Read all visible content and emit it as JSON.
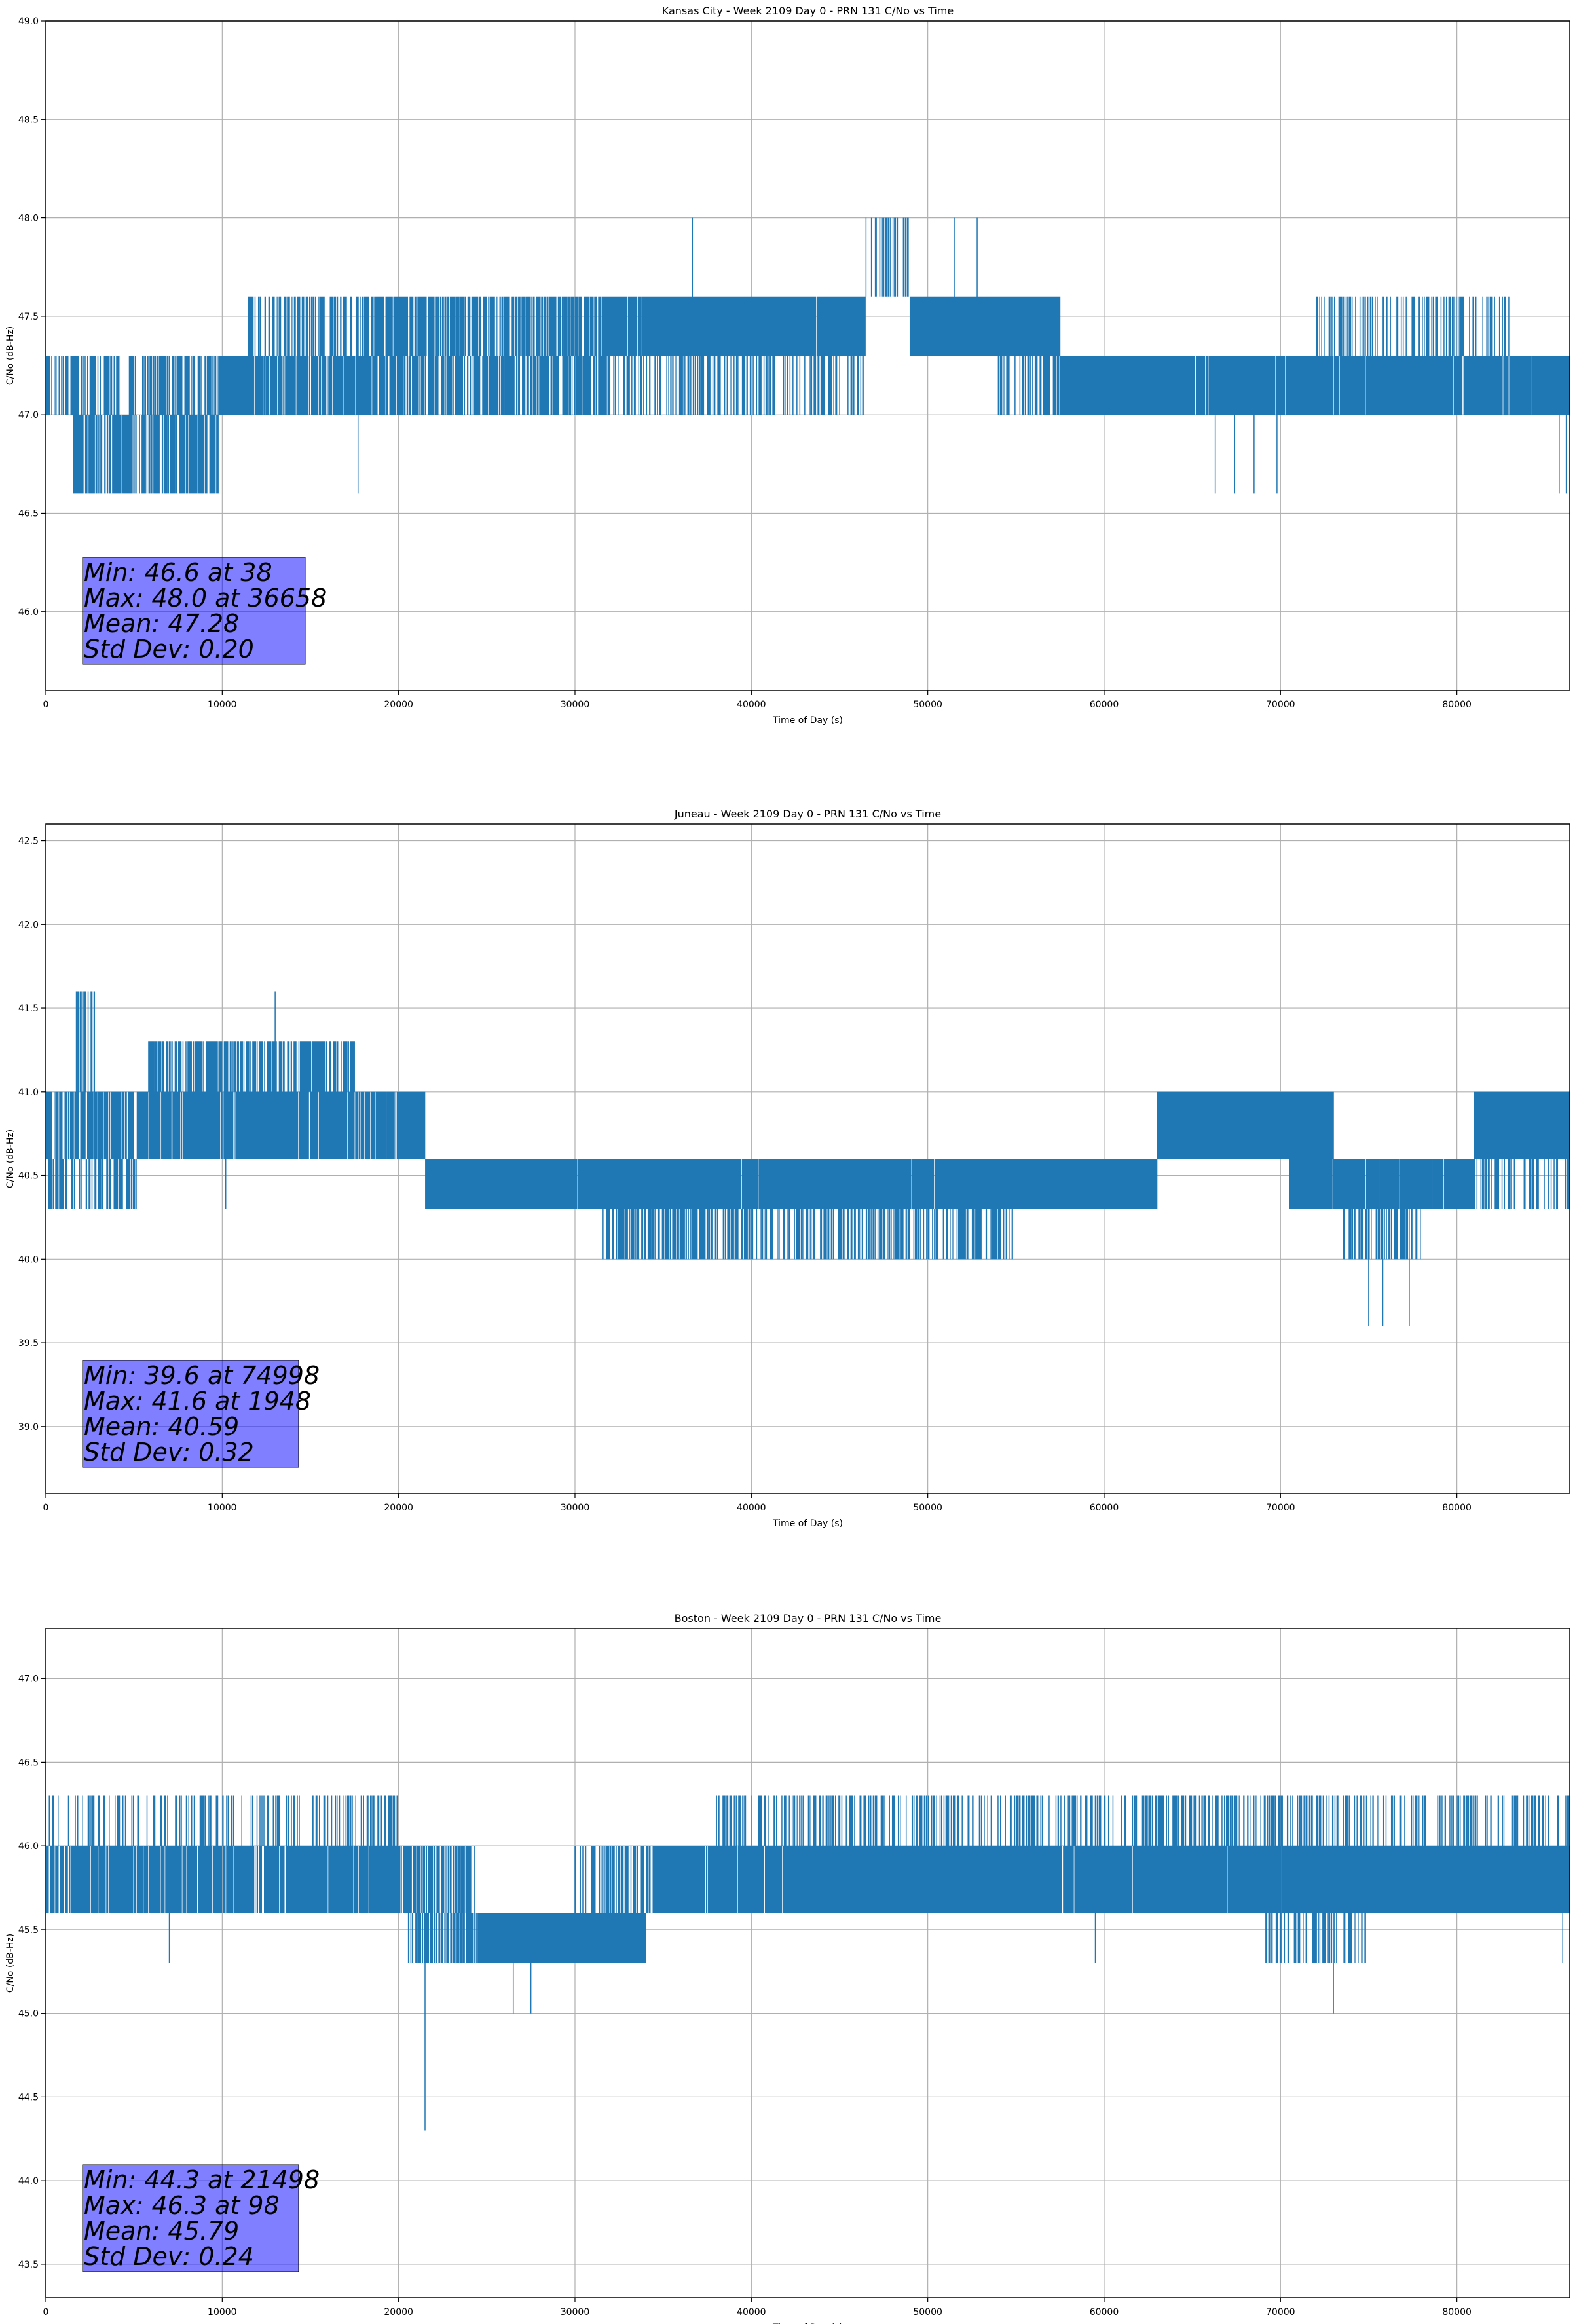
{
  "chart_data": [
    {
      "type": "line",
      "title": "Kansas City - Week 2109 Day 0 - PRN 131 C/No vs Time",
      "xlabel": "Time of Day (s)",
      "ylabel": "C/No (dB-Hz)",
      "xlim": [
        0,
        86400
      ],
      "ylim": [
        45.6,
        49.0
      ],
      "xticks": [
        "0",
        "10000",
        "20000",
        "30000",
        "40000",
        "50000",
        "60000",
        "70000",
        "80000"
      ],
      "yticks": [
        "46.0",
        "46.5",
        "47.0",
        "47.5",
        "48.0",
        "48.5",
        "49.0"
      ],
      "grid": true,
      "color": "#1f77b4",
      "series": [
        {
          "segments": [
            {
              "x0": 0,
              "x1": 9800,
              "lo": 47.0,
              "hi": 47.3,
              "density": 0.35
            },
            {
              "x0": 1500,
              "x1": 9800,
              "lo": 46.6,
              "hi": 47.0,
              "density": 0.55
            },
            {
              "x0": 9800,
              "x1": 11500,
              "lo": 47.0,
              "hi": 47.3,
              "density": 1.0
            },
            {
              "x0": 11500,
              "x1": 18000,
              "lo": 47.0,
              "hi": 47.3,
              "density": 0.7
            },
            {
              "x0": 11500,
              "x1": 18000,
              "lo": 47.3,
              "hi": 47.6,
              "density": 0.3
            },
            {
              "x0": 18000,
              "x1": 32000,
              "lo": 47.3,
              "hi": 47.6,
              "density": 0.55
            },
            {
              "x0": 18000,
              "x1": 32000,
              "lo": 47.0,
              "hi": 47.3,
              "density": 0.55
            },
            {
              "x0": 32000,
              "x1": 46500,
              "lo": 47.3,
              "hi": 47.6,
              "density": 0.9
            },
            {
              "x0": 32000,
              "x1": 46500,
              "lo": 47.0,
              "hi": 47.3,
              "density": 0.25
            },
            {
              "x0": 46500,
              "x1": 49000,
              "lo": 47.6,
              "hi": 48.0,
              "density": 0.3
            },
            {
              "x0": 49000,
              "x1": 57500,
              "lo": 47.3,
              "hi": 47.6,
              "density": 1.0
            },
            {
              "x0": 54000,
              "x1": 57500,
              "lo": 47.0,
              "hi": 47.3,
              "density": 0.4
            },
            {
              "x0": 57500,
              "x1": 65000,
              "lo": 47.0,
              "hi": 47.3,
              "density": 0.95
            },
            {
              "x0": 65000,
              "x1": 86400,
              "lo": 47.0,
              "hi": 47.3,
              "density": 0.85
            },
            {
              "x0": 72000,
              "x1": 83000,
              "lo": 47.3,
              "hi": 47.6,
              "density": 0.25
            }
          ],
          "spikes": [
            [
              36658,
              47.3,
              48.0
            ],
            [
              51500,
              47.3,
              48.0
            ],
            [
              52800,
              47.3,
              48.0
            ],
            [
              17700,
              47.0,
              46.6
            ],
            [
              66300,
              47.0,
              46.6
            ],
            [
              67400,
              47.0,
              46.6
            ],
            [
              68500,
              47.0,
              46.6
            ],
            [
              69800,
              47.0,
              46.6
            ],
            [
              85800,
              47.0,
              46.6
            ],
            [
              86200,
              47.0,
              46.6
            ]
          ]
        }
      ],
      "annotation": [
        "Min: 46.6 at 38",
        "Max: 48.0 at 36658",
        "Mean: 47.28",
        "Std Dev: 0.20"
      ]
    },
    {
      "type": "line",
      "title": "Juneau - Week 2109 Day 0 - PRN 131 C/No vs Time",
      "xlabel": "Time of Day (s)",
      "ylabel": "C/No (dB-Hz)",
      "xlim": [
        0,
        86400
      ],
      "ylim": [
        38.6,
        42.6
      ],
      "xticks": [
        "0",
        "10000",
        "20000",
        "30000",
        "40000",
        "50000",
        "60000",
        "70000",
        "80000"
      ],
      "yticks": [
        "39.0",
        "39.5",
        "40.0",
        "40.5",
        "41.0",
        "41.5",
        "42.0",
        "42.5"
      ],
      "grid": true,
      "color": "#1f77b4",
      "series": [
        {
          "segments": [
            {
              "x0": 0,
              "x1": 5200,
              "lo": 40.6,
              "hi": 41.0,
              "density": 0.55
            },
            {
              "x0": 0,
              "x1": 5200,
              "lo": 40.3,
              "hi": 40.6,
              "density": 0.35
            },
            {
              "x0": 1700,
              "x1": 2800,
              "lo": 41.0,
              "hi": 41.6,
              "density": 0.45
            },
            {
              "x0": 5200,
              "x1": 18000,
              "lo": 40.6,
              "hi": 41.0,
              "density": 0.75
            },
            {
              "x0": 5800,
              "x1": 17500,
              "lo": 41.0,
              "hi": 41.3,
              "density": 0.5
            },
            {
              "x0": 18000,
              "x1": 21500,
              "lo": 40.6,
              "hi": 41.0,
              "density": 0.8
            },
            {
              "x0": 21500,
              "x1": 63000,
              "lo": 40.3,
              "hi": 40.6,
              "density": 0.92
            },
            {
              "x0": 31500,
              "x1": 55000,
              "lo": 40.0,
              "hi": 40.3,
              "density": 0.35
            },
            {
              "x0": 63000,
              "x1": 73000,
              "lo": 40.6,
              "hi": 41.0,
              "density": 0.95
            },
            {
              "x0": 70500,
              "x1": 81000,
              "lo": 40.3,
              "hi": 40.6,
              "density": 0.85
            },
            {
              "x0": 73500,
              "x1": 78000,
              "lo": 40.0,
              "hi": 40.3,
              "density": 0.3
            },
            {
              "x0": 81000,
              "x1": 86400,
              "lo": 40.6,
              "hi": 41.0,
              "density": 0.95
            },
            {
              "x0": 81000,
              "x1": 86400,
              "lo": 40.3,
              "hi": 40.6,
              "density": 0.25
            }
          ],
          "spikes": [
            [
              1948,
              41.0,
              41.6
            ],
            [
              13000,
              41.0,
              41.6
            ],
            [
              74998,
              40.3,
              39.6
            ],
            [
              75800,
              40.3,
              39.6
            ],
            [
              77300,
              40.3,
              39.6
            ],
            [
              10200,
              40.6,
              40.3
            ]
          ]
        }
      ],
      "annotation": [
        "Min: 39.6 at 74998",
        "Max: 41.6 at 1948",
        "Mean: 40.59",
        "Std Dev: 0.32"
      ]
    },
    {
      "type": "line",
      "title": "Boston - Week 2109 Day 0 - PRN 131 C/No vs Time",
      "xlabel": "Time of Day (s)",
      "ylabel": "C/No (dB-Hz)",
      "xlim": [
        0,
        86400
      ],
      "ylim": [
        43.3,
        47.3
      ],
      "xticks": [
        "0",
        "10000",
        "20000",
        "30000",
        "40000",
        "50000",
        "60000",
        "70000",
        "80000"
      ],
      "yticks": [
        "43.5",
        "44.0",
        "44.5",
        "45.0",
        "45.5",
        "46.0",
        "46.5",
        "47.0"
      ],
      "grid": true,
      "color": "#1f77b4",
      "series": [
        {
          "segments": [
            {
              "x0": 0,
              "x1": 20500,
              "lo": 45.6,
              "hi": 46.0,
              "density": 0.75
            },
            {
              "x0": 0,
              "x1": 20000,
              "lo": 46.0,
              "hi": 46.3,
              "density": 0.2
            },
            {
              "x0": 20500,
              "x1": 24500,
              "lo": 45.6,
              "hi": 46.0,
              "density": 0.5
            },
            {
              "x0": 20500,
              "x1": 24500,
              "lo": 45.3,
              "hi": 45.6,
              "density": 0.5
            },
            {
              "x0": 24500,
              "x1": 34000,
              "lo": 45.3,
              "hi": 45.6,
              "density": 0.95
            },
            {
              "x0": 30000,
              "x1": 34500,
              "lo": 45.6,
              "hi": 46.0,
              "density": 0.35
            },
            {
              "x0": 34500,
              "x1": 86400,
              "lo": 45.6,
              "hi": 46.0,
              "density": 0.9
            },
            {
              "x0": 38000,
              "x1": 86400,
              "lo": 46.0,
              "hi": 46.3,
              "density": 0.25
            },
            {
              "x0": 69000,
              "x1": 75000,
              "lo": 45.3,
              "hi": 45.6,
              "density": 0.25
            }
          ],
          "spikes": [
            [
              21498,
              45.6,
              44.3
            ],
            [
              26500,
              45.3,
              45.0
            ],
            [
              27500,
              45.3,
              45.0
            ],
            [
              73000,
              45.6,
              45.0
            ],
            [
              7000,
              45.6,
              45.3
            ],
            [
              59500,
              45.6,
              45.3
            ],
            [
              86000,
              45.6,
              45.3
            ]
          ]
        }
      ],
      "annotation": [
        "Min: 44.3 at 21498",
        "Max: 46.3 at 98",
        "Mean: 45.79",
        "Std Dev: 0.24"
      ]
    }
  ]
}
